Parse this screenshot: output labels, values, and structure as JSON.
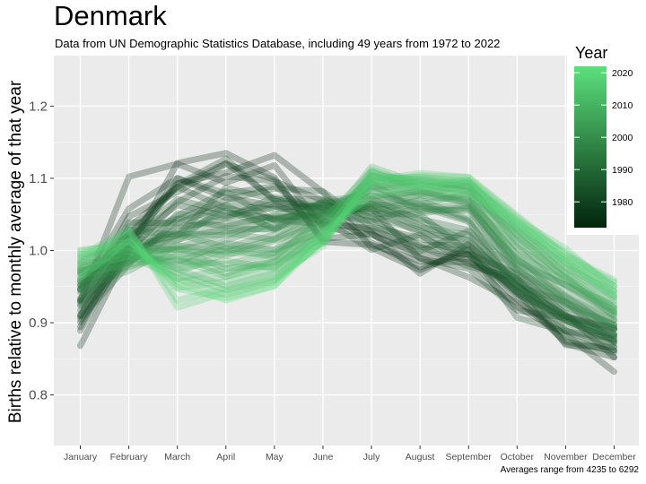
{
  "title": "Denmark",
  "subtitle": "Data from UN Demographic Statistics Database, including 49 years from 1972 to 2022",
  "caption": "Averages range from 4235 to 6292",
  "chart_data": {
    "type": "line",
    "title": "Denmark",
    "ylabel": "Births relative to monthly average of that year",
    "xlabel": "",
    "categories": [
      "January",
      "February",
      "March",
      "April",
      "May",
      "June",
      "July",
      "August",
      "September",
      "October",
      "November",
      "December"
    ],
    "ylim": [
      0.73,
      1.27
    ],
    "yticks": [
      0.8,
      0.9,
      1.0,
      1.1,
      1.2
    ],
    "grid": true,
    "colors": {
      "early": "#02240d",
      "late": "#5ce07d",
      "panel": "#ebebeb",
      "grid": "#ffffff"
    },
    "legend": {
      "title": "Year",
      "position": "right",
      "min": 1972,
      "max": 2022,
      "ticks": [
        1980,
        1990,
        2000,
        2010,
        2020
      ]
    },
    "series": [
      {
        "year": 1972,
        "values": [
          0.868,
          1.001,
          1.121,
          1.135,
          1.101,
          1.012,
          1.008,
          0.985,
          0.984,
          0.951,
          0.909,
          0.893
        ]
      },
      {
        "year": 1973,
        "values": [
          0.894,
          1.018,
          1.093,
          1.108,
          1.132,
          1.081,
          1.004,
          0.973,
          1.002,
          0.942,
          0.871,
          0.852
        ]
      },
      {
        "year": 1974,
        "values": [
          0.931,
          1.102,
          1.12,
          1.094,
          1.118,
          1.032,
          1.022,
          0.995,
          0.988,
          0.922,
          0.884,
          0.832
        ]
      },
      {
        "year": 1975,
        "values": [
          0.909,
          1.032,
          1.088,
          1.121,
          1.071,
          1.058,
          1.011,
          0.977,
          0.996,
          0.968,
          0.912,
          0.852
        ]
      },
      {
        "year": 1976,
        "values": [
          0.945,
          1.058,
          1.1,
          1.073,
          1.062,
          1.041,
          1.028,
          1.004,
          0.994,
          0.933,
          0.874,
          0.861
        ]
      },
      {
        "year": 1977,
        "values": [
          0.901,
          0.999,
          1.067,
          1.103,
          1.096,
          1.069,
          1.025,
          0.968,
          1.009,
          0.943,
          0.903,
          0.876
        ]
      },
      {
        "year": 1978,
        "values": [
          0.926,
          1.047,
          1.081,
          1.12,
          1.098,
          1.016,
          1.023,
          0.99,
          0.963,
          0.928,
          0.889,
          0.862
        ]
      },
      {
        "year": 1979,
        "values": [
          0.889,
          1.011,
          1.091,
          1.127,
          1.069,
          1.055,
          1.058,
          0.989,
          0.975,
          0.917,
          0.907,
          0.891
        ]
      },
      {
        "year": 1980,
        "values": [
          0.909,
          1.001,
          1.1,
          1.079,
          1.089,
          1.043,
          1.001,
          1.022,
          0.982,
          0.958,
          0.869,
          0.866
        ]
      },
      {
        "year": 1981,
        "values": [
          0.952,
          1.023,
          1.088,
          1.059,
          1.043,
          1.036,
          1.031,
          0.999,
          1.027,
          0.951,
          0.903,
          0.874
        ]
      },
      {
        "year": 1982,
        "values": [
          0.905,
          0.981,
          1.043,
          1.07,
          1.086,
          1.082,
          1.033,
          1.017,
          0.995,
          0.939,
          0.908,
          0.884
        ]
      },
      {
        "year": 1983,
        "values": [
          0.911,
          1.015,
          1.063,
          1.048,
          1.065,
          1.038,
          1.065,
          1.035,
          1.003,
          0.907,
          0.888,
          0.878
        ]
      },
      {
        "year": 1984,
        "values": [
          0.923,
          1.006,
          1.021,
          1.087,
          1.071,
          1.071,
          1.045,
          1.006,
          0.978,
          0.962,
          0.889,
          0.871
        ]
      },
      {
        "year": 1985,
        "values": [
          0.932,
          1.039,
          1.038,
          1.063,
          1.057,
          1.064,
          1.047,
          1.028,
          0.993,
          0.945,
          0.88,
          0.859
        ]
      },
      {
        "year": 1986,
        "values": [
          0.947,
          1.017,
          1.071,
          1.053,
          1.044,
          1.052,
          1.04,
          1.008,
          1.007,
          0.96,
          0.909,
          0.891
        ]
      },
      {
        "year": 1987,
        "values": [
          0.917,
          0.992,
          1.031,
          1.044,
          1.061,
          1.061,
          1.057,
          1.024,
          1.015,
          0.951,
          0.929,
          0.873
        ]
      },
      {
        "year": 1988,
        "values": [
          0.934,
          1.006,
          1.048,
          1.082,
          1.041,
          1.064,
          1.051,
          1.05,
          0.998,
          0.941,
          0.897,
          0.883
        ]
      },
      {
        "year": 1989,
        "values": [
          0.957,
          1.022,
          1.044,
          1.033,
          1.049,
          1.066,
          1.072,
          1.042,
          1.013,
          0.95,
          0.91,
          0.867
        ]
      },
      {
        "year": 1990,
        "values": [
          0.929,
          0.983,
          1.051,
          1.045,
          1.074,
          1.059,
          1.06,
          1.032,
          1.022,
          0.957,
          0.905,
          0.881
        ]
      },
      {
        "year": 1991,
        "values": [
          0.946,
          1.029,
          1.021,
          1.055,
          1.031,
          1.057,
          1.041,
          1.061,
          1.04,
          0.961,
          0.917,
          0.884
        ]
      },
      {
        "year": 1992,
        "values": [
          0.969,
          0.994,
          1.034,
          1.036,
          1.047,
          1.047,
          1.062,
          1.044,
          1.028,
          0.973,
          0.927,
          0.896
        ]
      },
      {
        "year": 1993,
        "values": [
          0.93,
          1.004,
          1.013,
          1.063,
          1.029,
          1.069,
          1.076,
          1.064,
          1.042,
          0.946,
          0.904,
          0.881
        ]
      },
      {
        "year": 1994,
        "values": [
          0.952,
          0.999,
          1.023,
          1.021,
          1.045,
          1.049,
          1.067,
          1.052,
          1.058,
          0.969,
          0.926,
          0.893
        ]
      },
      {
        "year": 1995,
        "values": [
          0.961,
          1.012,
          1.024,
          1.027,
          1.031,
          1.067,
          1.053,
          1.07,
          1.044,
          0.978,
          0.921,
          0.898
        ]
      },
      {
        "year": 1996,
        "values": [
          0.942,
          0.986,
          1.015,
          1.031,
          1.029,
          1.054,
          1.064,
          1.061,
          1.062,
          0.981,
          0.936,
          0.904
        ]
      },
      {
        "year": 1997,
        "values": [
          0.956,
          1.006,
          1.001,
          1.013,
          1.04,
          1.061,
          1.083,
          1.058,
          1.055,
          0.989,
          0.937,
          0.891
        ]
      },
      {
        "year": 1998,
        "values": [
          0.973,
          0.983,
          1.023,
          1.004,
          1.022,
          1.056,
          1.061,
          1.077,
          1.067,
          0.973,
          0.934,
          0.903
        ]
      },
      {
        "year": 1999,
        "values": [
          0.951,
          0.994,
          1.004,
          1.024,
          1.015,
          1.045,
          1.093,
          1.054,
          1.06,
          0.986,
          0.952,
          0.911
        ]
      },
      {
        "year": 2000,
        "values": [
          0.947,
          0.972,
          1.007,
          0.998,
          1.016,
          1.051,
          1.075,
          1.082,
          1.069,
          0.993,
          0.929,
          0.897
        ]
      },
      {
        "year": 2001,
        "values": [
          0.962,
          0.989,
          0.984,
          1.01,
          1.001,
          1.049,
          1.089,
          1.064,
          1.079,
          0.982,
          0.953,
          0.916
        ]
      },
      {
        "year": 2002,
        "values": [
          0.976,
          0.997,
          1.002,
          0.993,
          1.013,
          1.037,
          1.071,
          1.083,
          1.064,
          1.004,
          0.944,
          0.913
        ]
      },
      {
        "year": 2003,
        "values": [
          0.958,
          0.978,
          0.994,
          1.002,
          0.991,
          1.046,
          1.098,
          1.073,
          1.071,
          0.994,
          0.958,
          0.921
        ]
      },
      {
        "year": 2004,
        "values": [
          0.968,
          1.002,
          0.979,
          1.003,
          1.001,
          1.026,
          1.085,
          1.091,
          1.082,
          1.004,
          0.963,
          0.908
        ]
      },
      {
        "year": 2005,
        "values": [
          0.971,
          0.992,
          0.986,
          0.981,
          0.997,
          1.036,
          1.093,
          1.078,
          1.09,
          1.011,
          0.952,
          0.925
        ]
      },
      {
        "year": 2006,
        "values": [
          0.983,
          0.989,
          1.003,
          0.975,
          0.984,
          1.032,
          1.104,
          1.086,
          1.074,
          1.014,
          0.964,
          0.918
        ]
      },
      {
        "year": 2007,
        "values": [
          0.975,
          1.007,
          0.969,
          0.996,
          0.996,
          1.021,
          1.088,
          1.096,
          1.087,
          1.018,
          0.97,
          0.93
        ]
      },
      {
        "year": 2008,
        "values": [
          0.966,
          0.981,
          0.993,
          0.968,
          0.99,
          1.042,
          1.11,
          1.081,
          1.079,
          1.022,
          0.961,
          0.915
        ]
      },
      {
        "year": 2009,
        "values": [
          0.979,
          0.998,
          0.975,
          0.986,
          0.975,
          1.028,
          1.095,
          1.099,
          1.089,
          1.023,
          0.975,
          0.934
        ]
      },
      {
        "year": 2010,
        "values": [
          0.986,
          1.012,
          0.988,
          0.964,
          0.985,
          1.015,
          1.103,
          1.087,
          1.094,
          1.029,
          0.968,
          0.921
        ]
      },
      {
        "year": 2011,
        "values": [
          0.972,
          0.993,
          0.961,
          0.975,
          0.978,
          1.031,
          1.116,
          1.093,
          1.083,
          1.027,
          0.981,
          0.936
        ]
      },
      {
        "year": 2012,
        "values": [
          0.991,
          1.004,
          0.974,
          0.951,
          0.969,
          1.021,
          1.099,
          1.102,
          1.096,
          1.036,
          0.976,
          0.943
        ]
      },
      {
        "year": 2013,
        "values": [
          0.981,
          1.018,
          0.957,
          0.963,
          0.982,
          1.01,
          1.108,
          1.091,
          1.085,
          1.031,
          0.986,
          0.939
        ]
      },
      {
        "year": 2014,
        "values": [
          0.995,
          0.999,
          0.968,
          0.945,
          0.96,
          1.024,
          1.104,
          1.099,
          1.093,
          1.041,
          0.983,
          0.951
        ]
      },
      {
        "year": 2015,
        "values": [
          0.984,
          1.023,
          0.948,
          0.957,
          0.973,
          1.018,
          1.112,
          1.089,
          1.097,
          1.034,
          0.989,
          0.944
        ]
      },
      {
        "year": 2016,
        "values": [
          1.001,
          1.007,
          0.961,
          0.939,
          0.957,
          1.013,
          1.095,
          1.104,
          1.101,
          1.046,
          0.992,
          0.956
        ]
      },
      {
        "year": 2017,
        "values": [
          0.989,
          1.027,
          0.931,
          0.948,
          0.964,
          1.006,
          1.105,
          1.097,
          1.092,
          1.038,
          0.998,
          0.951
        ]
      },
      {
        "year": 2018,
        "values": [
          0.999,
          1.013,
          0.947,
          0.934,
          0.951,
          1.015,
          1.098,
          1.107,
          1.102,
          1.049,
          0.994,
          0.959
        ]
      },
      {
        "year": 2019,
        "values": [
          0.993,
          1.03,
          0.921,
          0.942,
          0.959,
          1.011,
          1.091,
          1.093,
          1.098,
          1.043,
          1.003,
          0.947
        ]
      },
      {
        "year": 2022,
        "values": [
          0.962,
          1.014,
          0.953,
          0.931,
          0.951,
          1.025,
          1.076,
          1.088,
          1.079,
          1.038,
          0.987,
          0.937
        ]
      }
    ]
  }
}
